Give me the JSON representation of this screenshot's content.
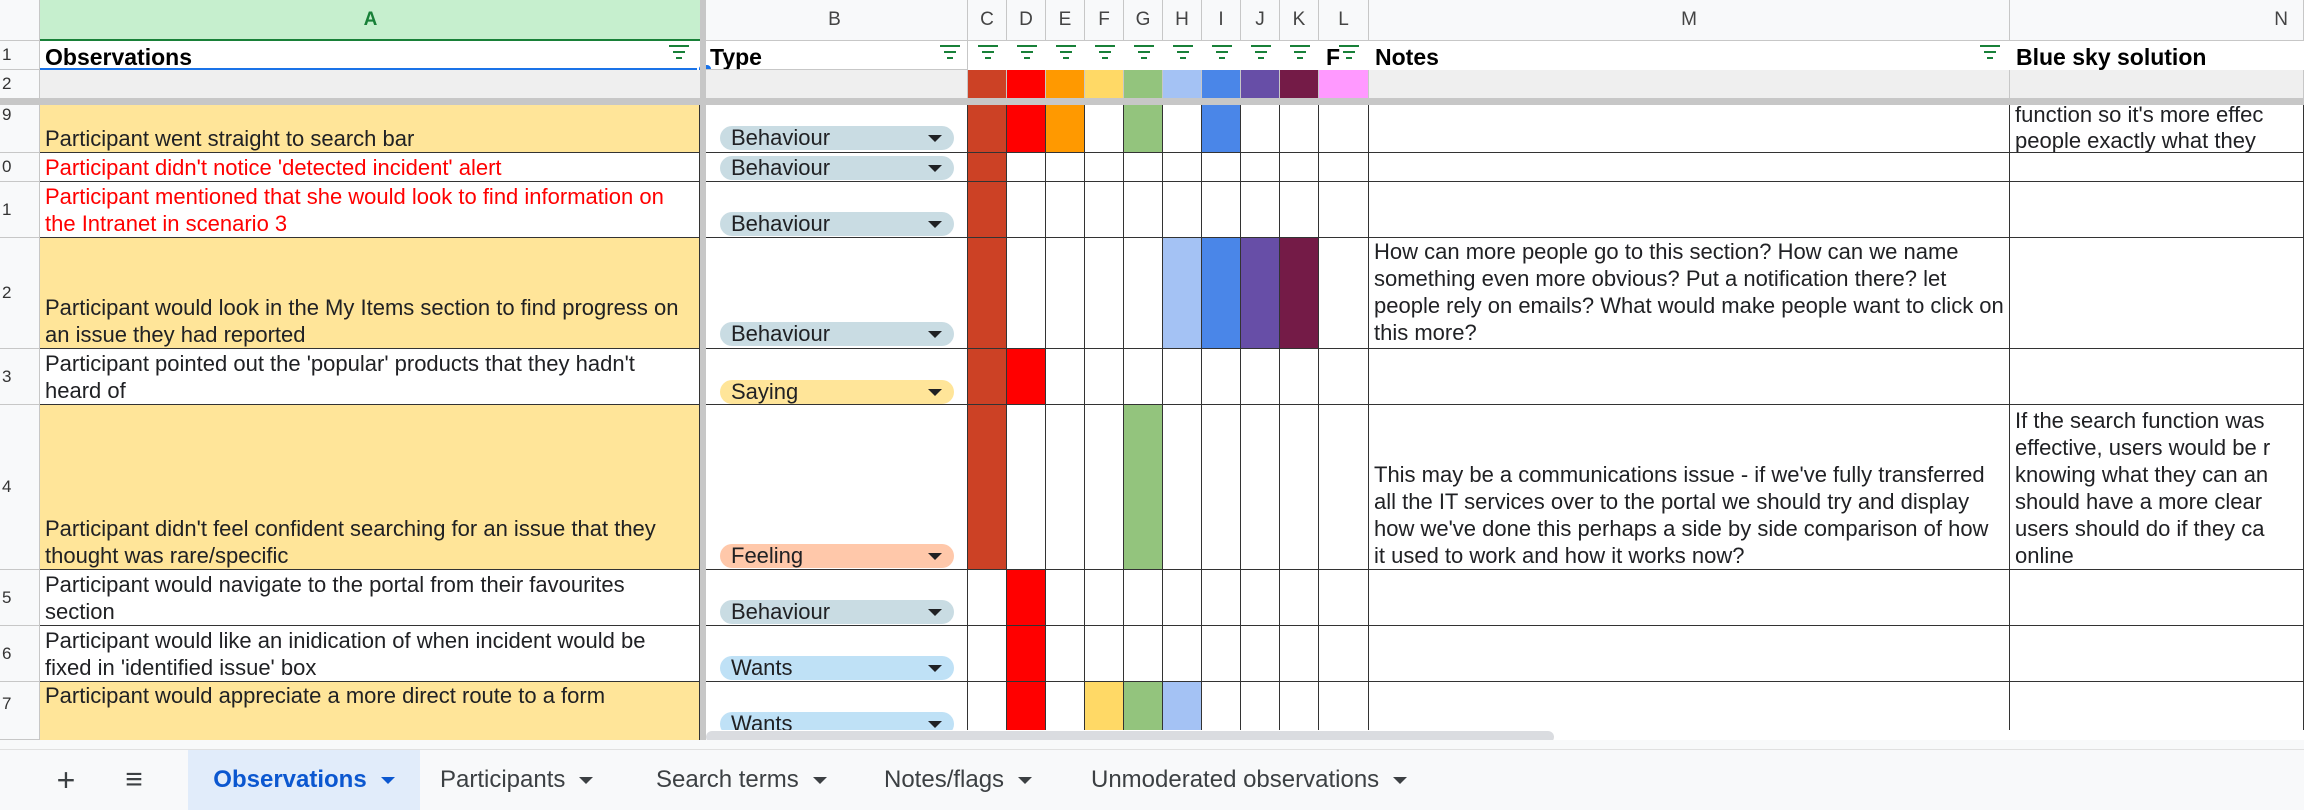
{
  "column_letters": [
    "A",
    "B",
    "C",
    "D",
    "E",
    "F",
    "G",
    "H",
    "I",
    "J",
    "K",
    "L",
    "M",
    "N"
  ],
  "headers": {
    "observations": "Observations",
    "type": "Type",
    "l_partial": "F",
    "notes": "Notes",
    "blue_sky": "Blue sky solution"
  },
  "row_numbers": [
    "1",
    "2",
    "9",
    "0",
    "1",
    "2",
    "3",
    "4",
    "5",
    "6",
    "7"
  ],
  "colors": {
    "C": "#cc4125",
    "D": "#ff0000",
    "E": "#ff9900",
    "F": "#ffd966",
    "G": "#93c47d",
    "H": "#a4c2f4",
    "I": "#4a86e8",
    "J": "#674ea7",
    "K": "#741b47",
    "L": "#ff99ff",
    "highlight_row": "#ffe599",
    "red_text": "#ff0000",
    "chip_behaviour": "#c9dce3",
    "chip_saying": "#ffe599",
    "chip_feeling": "#ffc8aa",
    "chip_wants": "#bfe1f6"
  },
  "rows": [
    {
      "num": "9",
      "observation": "Participant went straight to search bar",
      "type": "Behaviour",
      "notes": "",
      "blue_sky": "function so it's more effec\npeople exactly what they"
    },
    {
      "num": "0",
      "observation": "Participant didn't notice 'detected incident' alert",
      "type": "Behaviour",
      "notes": "",
      "blue_sky": ""
    },
    {
      "num": "1",
      "observation": "Participant mentioned that she would look to find information on the Intranet in scenario 3",
      "type": "Behaviour",
      "notes": "",
      "blue_sky": ""
    },
    {
      "num": "2",
      "observation": "Participant would look in the My Items section to find progress on an issue they had reported",
      "type": "Behaviour",
      "notes": "How can more people go to this section? How can we name something even more obvious? Put a notification there? let people rely on emails? What would make people want to click on this more?",
      "blue_sky": ""
    },
    {
      "num": "3",
      "observation": "Participant pointed out the 'popular' products that they hadn't heard of",
      "type": "Saying",
      "notes": "",
      "blue_sky": ""
    },
    {
      "num": "4",
      "observation": "Participant didn't feel confident searching for an issue that they thought was rare/specific",
      "type": "Feeling",
      "notes": "This may be a communications issue - if we've fully transferred all the IT services over to the portal we should try and display how we've done this perhaps a side by side comparison of how it used to work and how it works now?",
      "blue_sky": "If the search function was\neffective, users would be r\nknowing what they can an\nshould have a more clear\nusers should do if they ca\nonline"
    },
    {
      "num": "5",
      "observation": "Participant would navigate to the portal from their favourites section",
      "type": "Behaviour",
      "notes": "",
      "blue_sky": ""
    },
    {
      "num": "6",
      "observation": "Participant would like an inidication of when incident would be fixed in 'identified issue' box",
      "type": "Wants",
      "notes": "",
      "blue_sky": ""
    },
    {
      "num": "7",
      "observation": "Participant would appreciate a more direct route to a form",
      "type": "Wants",
      "notes": "",
      "blue_sky": ""
    }
  ],
  "tabs": {
    "add_icon": "+",
    "menu_icon": "≡",
    "items": [
      "Observations",
      "Participants",
      "Search terms",
      "Notes/flags",
      "Unmoderated observations"
    ]
  }
}
